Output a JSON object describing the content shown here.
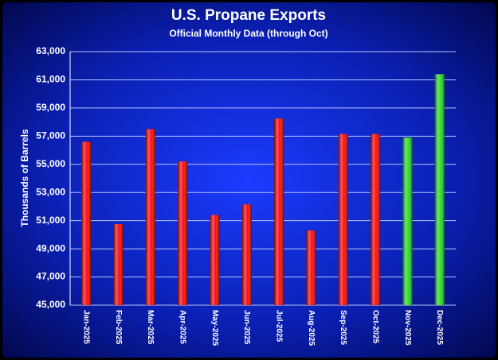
{
  "chart_data": {
    "type": "bar",
    "title": "U.S. Propane Exports",
    "subtitle": "Official Monthly Data (through Oct)",
    "y_label": "Thousands of Barrels",
    "categories": [
      "Jan-2025",
      "Feb-2025",
      "Mar-2025",
      "Apr-2025",
      "May-2025",
      "Jun-2025",
      "Jul-2025",
      "Aug-2025",
      "Sep-2025",
      "Oct-2025",
      "Nov-2025",
      "Dec-2025"
    ],
    "values": [
      56600,
      50750,
      57500,
      55200,
      51400,
      52150,
      58250,
      50300,
      57150,
      57150,
      56900,
      61400
    ],
    "colors": [
      "#ff0000",
      "#ff0000",
      "#ff0000",
      "#ff0000",
      "#ff0000",
      "#ff0000",
      "#ff0000",
      "#ff0000",
      "#ff0000",
      "#ff0000",
      "#22dd22",
      "#22dd22"
    ],
    "ylim": [
      45000,
      63000
    ],
    "yticks": [
      {
        "value": 45000,
        "label": "45,000"
      },
      {
        "value": 47000,
        "label": "47,000"
      },
      {
        "value": 49000,
        "label": "49,000"
      },
      {
        "value": 51000,
        "label": "51,000"
      },
      {
        "value": 53000,
        "label": "53,000"
      },
      {
        "value": 55000,
        "label": "55,000"
      },
      {
        "value": 57000,
        "label": "57,000"
      },
      {
        "value": 59000,
        "label": "59,000"
      },
      {
        "value": 61000,
        "label": "61,000"
      },
      {
        "value": 63000,
        "label": "63,000"
      }
    ],
    "grid": true
  }
}
